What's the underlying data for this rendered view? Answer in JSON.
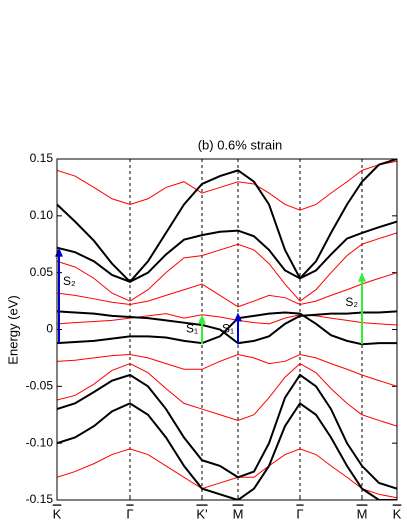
{
  "chart_data": {
    "type": "line",
    "title": "(b)  0.6% strain",
    "ylabel": "Energy (eV)",
    "x": [
      0,
      18,
      37,
      55,
      73,
      91,
      109,
      127,
      145,
      163,
      181,
      197,
      212,
      228,
      243,
      259,
      274,
      290,
      305,
      322,
      340
    ],
    "xlim": [
      0,
      340
    ],
    "xticks": [
      {
        "value": 0,
        "label": "K"
      },
      {
        "value": 73,
        "label": "Γ"
      },
      {
        "value": 145,
        "label": "K'"
      },
      {
        "value": 181,
        "label": "M"
      },
      {
        "value": 243,
        "label": "Γ"
      },
      {
        "value": 305,
        "label": "M"
      },
      {
        "value": 340,
        "label": "K"
      }
    ],
    "ylim": [
      -0.15,
      0.15
    ],
    "yticks": [
      -0.15,
      {
        "value": -0.1,
        "label": "-0.10"
      },
      -0.05,
      0,
      0.05,
      {
        "value": 0.1,
        "label": "0.10"
      },
      0.15
    ],
    "series": [
      {
        "color": "#ff0000",
        "values": [
          0.14,
          0.135,
          0.125,
          0.115,
          0.11,
          0.115,
          0.125,
          0.13,
          0.12,
          0.125,
          0.13,
          0.128,
          0.12,
          0.11,
          0.105,
          0.11,
          0.12,
          0.13,
          0.14,
          0.145,
          0.148
        ]
      },
      {
        "color": "#ff0000",
        "values": [
          0.06,
          0.055,
          0.045,
          0.032,
          0.025,
          0.035,
          0.05,
          0.063,
          0.065,
          0.07,
          0.075,
          0.07,
          0.058,
          0.04,
          0.025,
          0.035,
          0.05,
          0.065,
          0.075,
          0.08,
          0.085
        ]
      },
      {
        "color": "#ff0000",
        "values": [
          0.032,
          0.03,
          0.027,
          0.024,
          0.022,
          0.025,
          0.03,
          0.035,
          0.04,
          0.03,
          0.02,
          0.025,
          0.03,
          0.028,
          0.022,
          0.025,
          0.03,
          0.035,
          0.04,
          0.045,
          0.05
        ]
      },
      {
        "color": "#ff0000",
        "values": [
          0.005,
          0.006,
          0.007,
          0.008,
          0.01,
          0.012,
          0.014,
          0.01,
          0.013,
          0.011,
          0.008,
          0.006,
          0.005,
          0.01,
          0.013,
          0.012,
          0.01,
          0.008,
          0.006,
          0.005,
          0.004
        ]
      },
      {
        "color": "#ff0000",
        "values": [
          -0.028,
          -0.027,
          -0.025,
          -0.023,
          -0.022,
          -0.025,
          -0.03,
          -0.035,
          -0.035,
          -0.028,
          -0.022,
          -0.025,
          -0.03,
          -0.028,
          -0.022,
          -0.025,
          -0.03,
          -0.035,
          -0.04,
          -0.045,
          -0.05
        ]
      },
      {
        "color": "#ff0000",
        "values": [
          -0.062,
          -0.058,
          -0.048,
          -0.036,
          -0.03,
          -0.038,
          -0.052,
          -0.065,
          -0.07,
          -0.075,
          -0.08,
          -0.075,
          -0.06,
          -0.042,
          -0.03,
          -0.038,
          -0.052,
          -0.065,
          -0.075,
          -0.08,
          -0.085
        ]
      },
      {
        "color": "#ff0000",
        "values": [
          -0.13,
          -0.125,
          -0.118,
          -0.11,
          -0.105,
          -0.11,
          -0.12,
          -0.13,
          -0.14,
          -0.135,
          -0.13,
          -0.13,
          -0.12,
          -0.11,
          -0.105,
          -0.11,
          -0.12,
          -0.13,
          -0.14,
          -0.145,
          -0.148
        ]
      },
      {
        "color": "#000000",
        "values": [
          0.11,
          0.095,
          0.078,
          0.058,
          0.042,
          0.06,
          0.085,
          0.11,
          0.128,
          0.135,
          0.14,
          0.13,
          0.11,
          0.07,
          0.045,
          0.06,
          0.085,
          0.11,
          0.13,
          0.145,
          0.15
        ]
      },
      {
        "color": "#000000",
        "values": [
          0.072,
          0.068,
          0.06,
          0.048,
          0.042,
          0.05,
          0.066,
          0.079,
          0.083,
          0.086,
          0.087,
          0.082,
          0.07,
          0.052,
          0.045,
          0.052,
          0.066,
          0.08,
          0.085,
          0.09,
          0.095
        ]
      },
      {
        "color": "#000000",
        "values": [
          0.016,
          0.015,
          0.014,
          0.012,
          0.011,
          0.01,
          0.008,
          0.006,
          0.004,
          0.0,
          -0.012,
          -0.01,
          -0.006,
          0.005,
          0.012,
          0.013,
          0.014,
          0.014,
          0.015,
          0.015,
          0.016
        ]
      },
      {
        "color": "#000000",
        "values": [
          -0.012,
          -0.011,
          -0.01,
          -0.008,
          -0.006,
          -0.006,
          -0.007,
          -0.01,
          -0.012,
          -0.006,
          0.01,
          0.012,
          0.014,
          0.015,
          0.014,
          0.005,
          -0.005,
          -0.01,
          -0.013,
          -0.012,
          -0.012
        ]
      },
      {
        "color": "#000000",
        "values": [
          -0.07,
          -0.065,
          -0.055,
          -0.045,
          -0.04,
          -0.05,
          -0.07,
          -0.095,
          -0.115,
          -0.12,
          -0.13,
          -0.125,
          -0.1,
          -0.06,
          -0.04,
          -0.05,
          -0.07,
          -0.1,
          -0.12,
          -0.135,
          -0.14
        ]
      },
      {
        "color": "#000000",
        "values": [
          -0.1,
          -0.095,
          -0.085,
          -0.072,
          -0.065,
          -0.075,
          -0.095,
          -0.12,
          -0.14,
          -0.145,
          -0.15,
          -0.14,
          -0.12,
          -0.085,
          -0.065,
          -0.075,
          -0.095,
          -0.12,
          -0.14,
          -0.15,
          -0.15
        ]
      }
    ],
    "annotations": [
      {
        "text": "S₂",
        "x": 0,
        "y0": -0.012,
        "y1": 0.072,
        "color": "#0000cc"
      },
      {
        "text": "S₁",
        "x": 145,
        "y0": -0.013,
        "y1": 0.013,
        "color": "#33ee33"
      },
      {
        "text": "S₁",
        "x": 181,
        "y0": -0.013,
        "y1": 0.015,
        "color": "#0000cc"
      },
      {
        "text": "S₂",
        "x": 305,
        "y0": -0.013,
        "y1": 0.05,
        "color": "#33ee33"
      }
    ]
  }
}
